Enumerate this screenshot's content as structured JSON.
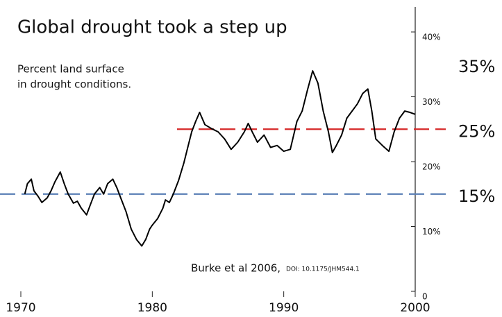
{
  "chart_data": {
    "type": "line",
    "title": "Global drought took a step up",
    "subtitle": [
      "Percent land surface",
      "in drought conditions."
    ],
    "citation": "Burke et al 2006,",
    "doi": "DOI: 10.1175/JHM544.1",
    "x": [
      1970.3,
      1970.5,
      1970.8,
      1971.0,
      1971.3,
      1971.6,
      1972.0,
      1972.3,
      1972.6,
      1973.0,
      1973.3,
      1973.6,
      1974.0,
      1974.3,
      1974.6,
      1975.0,
      1975.3,
      1975.6,
      1976.0,
      1976.3,
      1976.6,
      1977.0,
      1977.3,
      1977.6,
      1978.0,
      1978.4,
      1978.8,
      1979.2,
      1979.5,
      1979.8,
      1980.0,
      1980.4,
      1980.8,
      1981.0,
      1981.3,
      1981.6,
      1982.0,
      1982.4,
      1982.8,
      1983.0,
      1983.3,
      1983.6,
      1984.0,
      1984.5,
      1985.0,
      1985.5,
      1986.0,
      1986.5,
      1987.0,
      1987.3,
      1987.6,
      1988.0,
      1988.5,
      1989.0,
      1989.5,
      1990.0,
      1990.5,
      1991.0,
      1991.4,
      1991.8,
      1992.2,
      1992.6,
      1993.0,
      1993.4,
      1993.7,
      1994.0,
      1994.4,
      1994.8,
      1995.2,
      1995.6,
      1996.0,
      1996.4,
      1996.7,
      1997.0,
      1997.5,
      1998.0,
      1998.4,
      1998.8,
      1999.2,
      1999.6,
      2000.0
    ],
    "series": [
      {
        "color": "#000000",
        "values": [
          15.0,
          16.6,
          17.3,
          15.5,
          14.7,
          13.7,
          14.4,
          15.5,
          16.9,
          18.4,
          16.6,
          15.0,
          13.6,
          13.9,
          12.8,
          11.8,
          13.4,
          15.0,
          16.0,
          15.0,
          16.6,
          17.3,
          16.0,
          14.4,
          12.3,
          9.6,
          8.0,
          7.0,
          8.0,
          9.6,
          10.2,
          11.2,
          12.8,
          14.1,
          13.7,
          15.0,
          17.1,
          19.8,
          23.0,
          24.6,
          26.2,
          27.6,
          25.7,
          25.1,
          24.6,
          23.5,
          21.9,
          23.0,
          24.6,
          25.9,
          24.6,
          23.0,
          24.1,
          22.2,
          22.5,
          21.6,
          21.9,
          26.2,
          27.8,
          31.0,
          34.0,
          32.1,
          27.8,
          24.6,
          21.4,
          22.5,
          24.1,
          26.7,
          27.8,
          28.9,
          30.5,
          31.2,
          27.8,
          23.5,
          22.5,
          21.6,
          24.6,
          26.7,
          27.8,
          27.6,
          27.3
        ]
      }
    ],
    "xlim": [
      1970,
      2000
    ],
    "xticks": [
      1970,
      1980,
      1990,
      2000
    ],
    "ylim": [
      0,
      43
    ],
    "yticks": [
      0,
      {
        "value": 10,
        "label": "10%"
      },
      {
        "value": 20,
        "label": "20%"
      },
      {
        "value": 30,
        "label": "30%"
      },
      {
        "value": 40,
        "label": "40%"
      }
    ],
    "reference_lines": [
      {
        "value": 25,
        "label": "25%",
        "color": "#d62828"
      },
      {
        "value": 15,
        "label": "15%",
        "color": "#5a7fb5"
      }
    ],
    "annotations": [
      {
        "value": 35,
        "label": "35%"
      }
    ]
  }
}
